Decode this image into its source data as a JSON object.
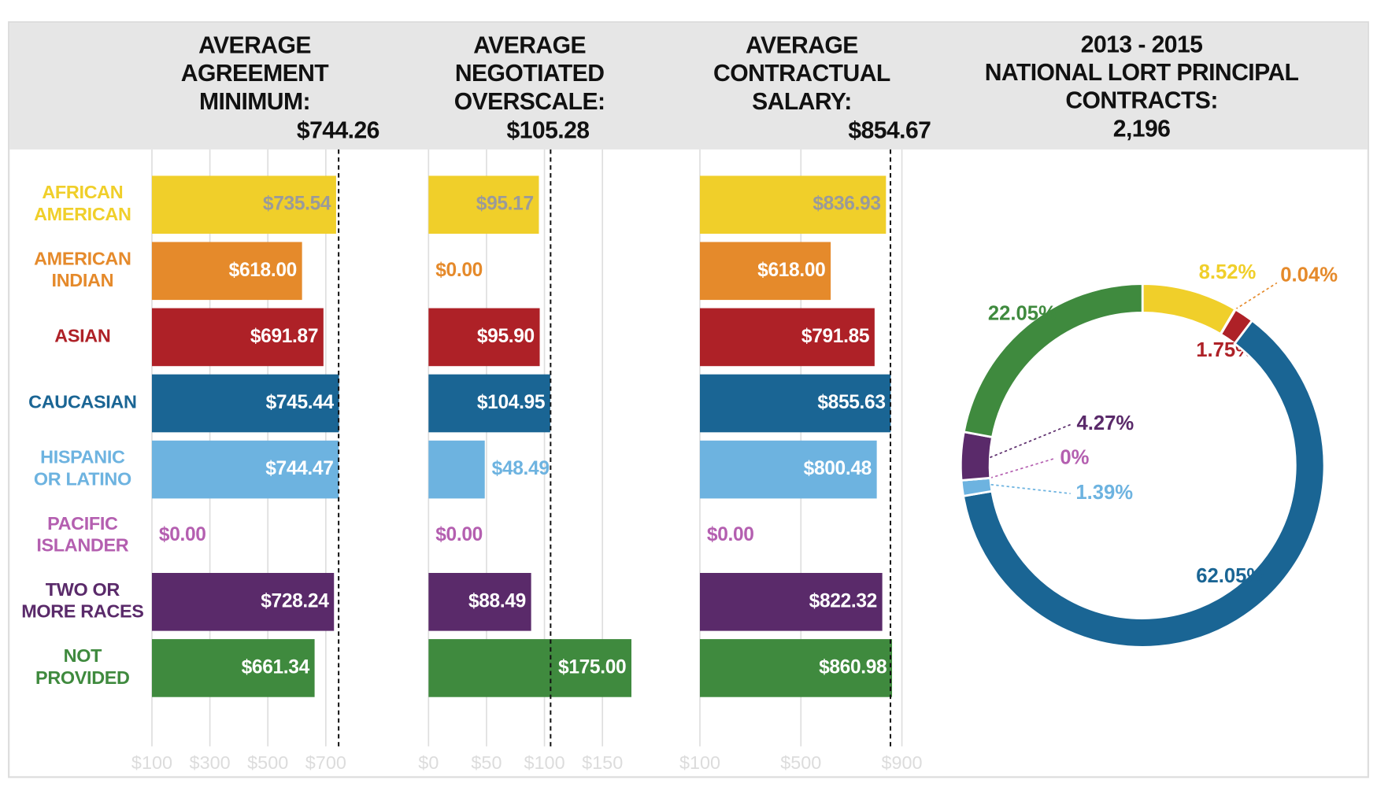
{
  "chart_data": [
    {
      "type": "bar",
      "orientation": "horizontal",
      "title": "AVERAGE\nAGREEMENT\nMINIMUM:",
      "average": 744.26,
      "average_label": "$744.26",
      "categories": [
        "AFRICAN\nAMERICAN",
        "AMERICAN\nINDIAN",
        "ASIAN",
        "CAUCASIAN",
        "HISPANIC\nOR LATINO",
        "PACIFIC\nISLANDER",
        "TWO OR\nMORE RACES",
        "NOT\nPROVIDED"
      ],
      "colors": [
        "#f0cf2a",
        "#e58a2b",
        "#ae2127",
        "#1a6594",
        "#6db3e0",
        "#b45fb0",
        "#5a2a6a",
        "#3f8a3e"
      ],
      "values": [
        735.54,
        618.0,
        691.87,
        745.44,
        744.47,
        0.0,
        728.24,
        661.34
      ],
      "value_labels": [
        "$735.54",
        "$618.00",
        "$691.87",
        "$745.44",
        "$744.47",
        "$0.00",
        "$728.24",
        "$661.34"
      ],
      "xlim": [
        100,
        900
      ],
      "xticks": [
        {
          "value": 100,
          "label": "$100"
        },
        {
          "value": 300,
          "label": "$300"
        },
        {
          "value": 500,
          "label": "$500"
        },
        {
          "value": 700,
          "label": "$700"
        }
      ],
      "grid": true
    },
    {
      "type": "bar",
      "orientation": "horizontal",
      "title": "AVERAGE\nNEGOTIATED\nOVERSCALE:",
      "average": 105.28,
      "average_label": "$105.28",
      "colors": [
        "#f0cf2a",
        "#e58a2b",
        "#ae2127",
        "#1a6594",
        "#6db3e0",
        "#b45fb0",
        "#5a2a6a",
        "#3f8a3e"
      ],
      "values": [
        95.17,
        0.0,
        95.9,
        104.95,
        48.49,
        0.0,
        88.49,
        175.0
      ],
      "value_labels": [
        "$95.17",
        "$0.00",
        "$95.90",
        "$104.95",
        "$48.49",
        "$0.00",
        "$88.49",
        "$175.00"
      ],
      "xlim": [
        0,
        200
      ],
      "xticks": [
        {
          "value": 0,
          "label": "$0"
        },
        {
          "value": 50,
          "label": "$50"
        },
        {
          "value": 100,
          "label": "$100"
        },
        {
          "value": 150,
          "label": "$150"
        }
      ],
      "grid": true
    },
    {
      "type": "bar",
      "orientation": "horizontal",
      "title": "AVERAGE\nCONTRACTUAL\nSALARY:",
      "average": 854.67,
      "average_label": "$854.67",
      "colors": [
        "#f0cf2a",
        "#e58a2b",
        "#ae2127",
        "#1a6594",
        "#6db3e0",
        "#b45fb0",
        "#5a2a6a",
        "#3f8a3e"
      ],
      "values": [
        836.93,
        618.0,
        791.85,
        855.63,
        800.48,
        0.0,
        822.32,
        860.98
      ],
      "value_labels": [
        "$836.93",
        "$618.00",
        "$791.85",
        "$855.63",
        "$800.48",
        "$0.00",
        "$822.32",
        "$860.98"
      ],
      "xlim": [
        100,
        900
      ],
      "xticks": [
        {
          "value": 100,
          "label": "$100"
        },
        {
          "value": 500,
          "label": "$500"
        },
        {
          "value": 900,
          "label": "$900"
        }
      ],
      "grid": true
    },
    {
      "type": "pie",
      "donut": true,
      "title": "2013 - 2015\nNATIONAL LORT PRINCIPAL\nCONTRACTS:",
      "total": 2196,
      "total_label": "2,196",
      "colors": [
        "#f0cf2a",
        "#e58a2b",
        "#ae2127",
        "#1a6594",
        "#6db3e0",
        "#b45fb0",
        "#5a2a6a",
        "#3f8a3e"
      ],
      "values": [
        8.52,
        0.04,
        1.75,
        62.05,
        1.39,
        0,
        4.27,
        22.05
      ],
      "value_labels": [
        "8.52%",
        "0.04%",
        "1.75%",
        "62.05%",
        "1.39%",
        "0%",
        "4.27%",
        "22.05%"
      ]
    }
  ]
}
